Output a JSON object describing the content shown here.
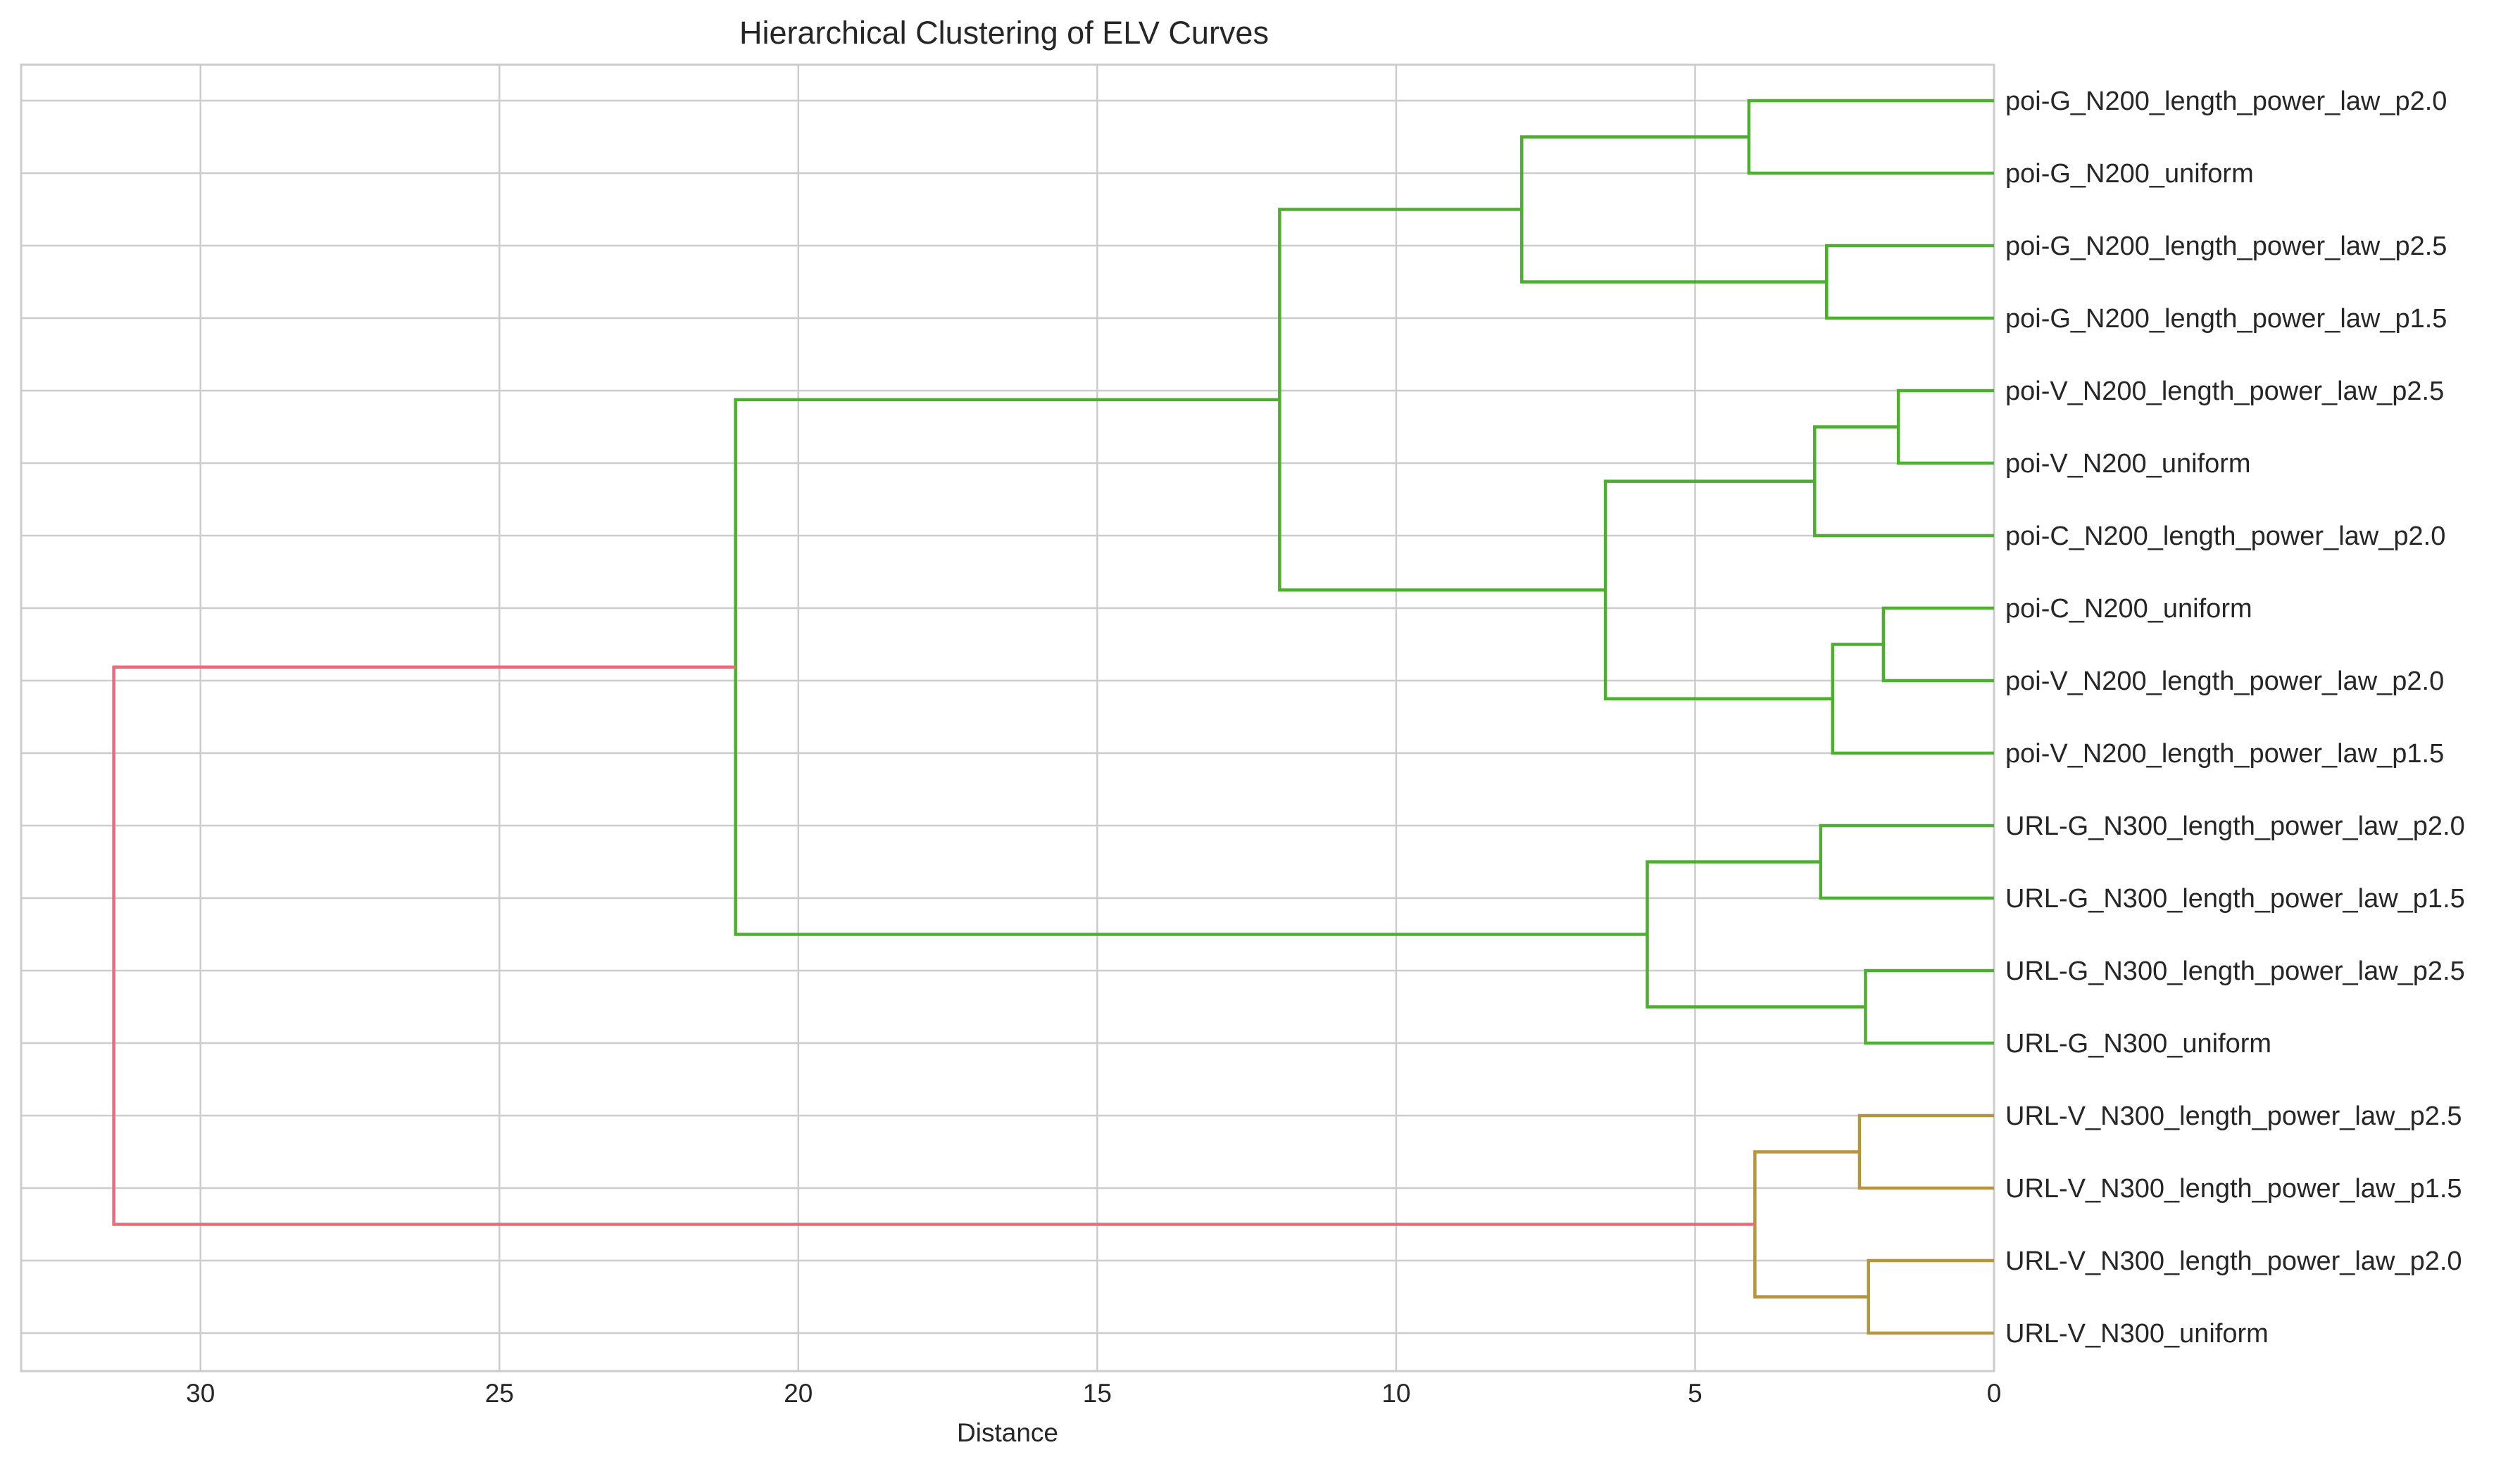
{
  "chart_data": {
    "type": "dendrogram",
    "title": "Hierarchical Clustering of ELV Curves",
    "xlabel": "Distance",
    "xlim": [
      33.0,
      0
    ],
    "xticks": [
      30,
      25,
      20,
      15,
      10,
      5,
      0
    ],
    "grid": true,
    "orientation": "left",
    "leaves": [
      "poi-G_N200_length_power_law_p2.0",
      "poi-G_N200_uniform",
      "poi-G_N200_length_power_law_p2.5",
      "poi-G_N200_length_power_law_p1.5",
      "poi-V_N200_length_power_law_p2.5",
      "poi-V_N200_uniform",
      "poi-C_N200_length_power_law_p2.0",
      "poi-C_N200_uniform",
      "poi-V_N200_length_power_law_p2.0",
      "poi-V_N200_length_power_law_p1.5",
      "URL-G_N300_length_power_law_p2.0",
      "URL-G_N300_length_power_law_p1.5",
      "URL-G_N300_length_power_law_p2.5",
      "URL-G_N300_uniform",
      "URL-V_N300_length_power_law_p2.5",
      "URL-V_N300_length_power_law_p1.5",
      "URL-V_N300_length_power_law_p2.0",
      "URL-V_N300_uniform"
    ],
    "merges": [
      {
        "id": "m0",
        "children": [
          "L0",
          "L1"
        ],
        "height": 4.1,
        "color": "#4daf2e"
      },
      {
        "id": "m1",
        "children": [
          "L2",
          "L3"
        ],
        "height": 2.8,
        "color": "#4daf2e"
      },
      {
        "id": "m2",
        "children": [
          "m0",
          "m1"
        ],
        "height": 7.9,
        "color": "#4daf2e"
      },
      {
        "id": "m3",
        "children": [
          "L4",
          "L5"
        ],
        "height": 1.6,
        "color": "#4daf2e"
      },
      {
        "id": "m4",
        "children": [
          "m3",
          "L6"
        ],
        "height": 3.0,
        "color": "#4daf2e"
      },
      {
        "id": "m5",
        "children": [
          "L7",
          "L8"
        ],
        "height": 1.85,
        "color": "#4daf2e"
      },
      {
        "id": "m6",
        "children": [
          "m5",
          "L9"
        ],
        "height": 2.7,
        "color": "#4daf2e"
      },
      {
        "id": "m7",
        "children": [
          "m4",
          "m6"
        ],
        "height": 6.5,
        "color": "#4daf2e"
      },
      {
        "id": "m8",
        "children": [
          "m2",
          "m7"
        ],
        "height": 11.95,
        "color": "#4daf2e"
      },
      {
        "id": "m9",
        "children": [
          "L10",
          "L11"
        ],
        "height": 2.9,
        "color": "#4daf2e"
      },
      {
        "id": "m10",
        "children": [
          "L12",
          "L13"
        ],
        "height": 2.15,
        "color": "#4daf2e"
      },
      {
        "id": "m11",
        "children": [
          "m9",
          "m10"
        ],
        "height": 5.8,
        "color": "#4daf2e"
      },
      {
        "id": "m12",
        "children": [
          "m8",
          "m11"
        ],
        "height": 21.05,
        "color": "#4daf2e"
      },
      {
        "id": "m13",
        "children": [
          "L14",
          "L15"
        ],
        "height": 2.25,
        "color": "#b5943a"
      },
      {
        "id": "m14",
        "children": [
          "L16",
          "L17"
        ],
        "height": 2.1,
        "color": "#b5943a"
      },
      {
        "id": "m15",
        "children": [
          "m13",
          "m14"
        ],
        "height": 4.0,
        "color": "#b5943a"
      },
      {
        "id": "m16",
        "children": [
          "m12",
          "m15"
        ],
        "height": 31.45,
        "color": "#f0697a"
      }
    ],
    "colors": {
      "cluster_1": "#4daf2e",
      "cluster_2": "#b5943a",
      "root": "#f0697a",
      "grid": "#cccccc",
      "text": "#262626"
    }
  }
}
